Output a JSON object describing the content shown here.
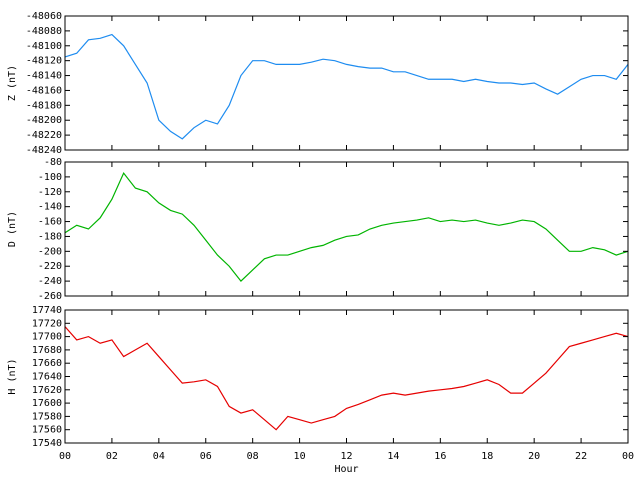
{
  "chart_data": [
    {
      "type": "line",
      "ylabel": "Z (nT)",
      "color": "#1e8cf0",
      "x": [
        0,
        0.5,
        1,
        1.5,
        2,
        2.5,
        3,
        3.5,
        4,
        4.5,
        5,
        5.5,
        6,
        6.5,
        7,
        7.5,
        8,
        8.5,
        9,
        9.5,
        10,
        10.5,
        11,
        11.5,
        12,
        12.5,
        13,
        13.5,
        14,
        14.5,
        15,
        15.5,
        16,
        16.5,
        17,
        17.5,
        18,
        18.5,
        19,
        19.5,
        20,
        20.5,
        21,
        21.5,
        22,
        22.5,
        23,
        23.5,
        24
      ],
      "values": [
        -48115,
        -48110,
        -48092,
        -48090,
        -48085,
        -48100,
        -48125,
        -48150,
        -48200,
        -48215,
        -48225,
        -48210,
        -48200,
        -48205,
        -48180,
        -48140,
        -48120,
        -48120,
        -48125,
        -48125,
        -48125,
        -48122,
        -48118,
        -48120,
        -48125,
        -48128,
        -48130,
        -48130,
        -48135,
        -48135,
        -48140,
        -48145,
        -48145,
        -48145,
        -48148,
        -48145,
        -48148,
        -48150,
        -48150,
        -48152,
        -48150,
        -48158,
        -48165,
        -48155,
        -48145,
        -48140,
        -48140,
        -48145,
        -48125
      ],
      "xlim": [
        0,
        24
      ],
      "ylim": [
        -48240,
        -48060
      ],
      "yticks": [
        -48060,
        -48080,
        -48100,
        -48120,
        -48140,
        -48160,
        -48180,
        -48200,
        -48220,
        -48240
      ]
    },
    {
      "type": "line",
      "ylabel": "D (nT)",
      "color": "#00b400",
      "x": [
        0,
        0.5,
        1,
        1.5,
        2,
        2.5,
        3,
        3.5,
        4,
        4.5,
        5,
        5.5,
        6,
        6.5,
        7,
        7.5,
        8,
        8.5,
        9,
        9.5,
        10,
        10.5,
        11,
        11.5,
        12,
        12.5,
        13,
        13.5,
        14,
        14.5,
        15,
        15.5,
        16,
        16.5,
        17,
        17.5,
        18,
        18.5,
        19,
        19.5,
        20,
        20.5,
        21,
        21.5,
        22,
        22.5,
        23,
        23.5,
        24
      ],
      "values": [
        -175,
        -165,
        -170,
        -155,
        -130,
        -95,
        -115,
        -120,
        -135,
        -145,
        -150,
        -165,
        -185,
        -205,
        -220,
        -240,
        -225,
        -210,
        -205,
        -205,
        -200,
        -195,
        -192,
        -185,
        -180,
        -178,
        -170,
        -165,
        -162,
        -160,
        -158,
        -155,
        -160,
        -158,
        -160,
        -158,
        -162,
        -165,
        -162,
        -158,
        -160,
        -170,
        -185,
        -200,
        -200,
        -195,
        -198,
        -205,
        -200
      ],
      "xlim": [
        0,
        24
      ],
      "ylim": [
        -260,
        -80
      ],
      "yticks": [
        -80,
        -100,
        -120,
        -140,
        -160,
        -180,
        -200,
        -220,
        -240,
        -260
      ]
    },
    {
      "type": "line",
      "ylabel": "H (nT)",
      "xlabel": "Hour",
      "color": "#e60000",
      "x": [
        0,
        0.5,
        1,
        1.5,
        2,
        2.5,
        3,
        3.5,
        4,
        4.5,
        5,
        5.5,
        6,
        6.5,
        7,
        7.5,
        8,
        8.5,
        9,
        9.5,
        10,
        10.5,
        11,
        11.5,
        12,
        12.5,
        13,
        13.5,
        14,
        14.5,
        15,
        15.5,
        16,
        16.5,
        17,
        17.5,
        18,
        18.5,
        19,
        19.5,
        20,
        20.5,
        21,
        21.5,
        22,
        22.5,
        23,
        23.5,
        24
      ],
      "values": [
        17715,
        17695,
        17700,
        17690,
        17695,
        17670,
        17680,
        17690,
        17670,
        17650,
        17630,
        17632,
        17635,
        17625,
        17595,
        17585,
        17590,
        17575,
        17560,
        17580,
        17575,
        17570,
        17575,
        17580,
        17592,
        17598,
        17605,
        17612,
        17615,
        17612,
        17615,
        17618,
        17620,
        17622,
        17625,
        17630,
        17635,
        17628,
        17615,
        17615,
        17630,
        17645,
        17665,
        17685,
        17690,
        17695,
        17700,
        17705,
        17700
      ],
      "xlim": [
        0,
        24
      ],
      "ylim": [
        17540,
        17740
      ],
      "yticks": [
        17740,
        17720,
        17700,
        17680,
        17660,
        17640,
        17620,
        17600,
        17580,
        17560,
        17540
      ],
      "xticks": [
        {
          "value": 0,
          "label": "00"
        },
        {
          "value": 2,
          "label": "02"
        },
        {
          "value": 4,
          "label": "04"
        },
        {
          "value": 6,
          "label": "06"
        },
        {
          "value": 8,
          "label": "08"
        },
        10,
        12,
        14,
        16,
        18,
        20,
        22,
        {
          "value": 24,
          "label": "00"
        }
      ]
    }
  ]
}
